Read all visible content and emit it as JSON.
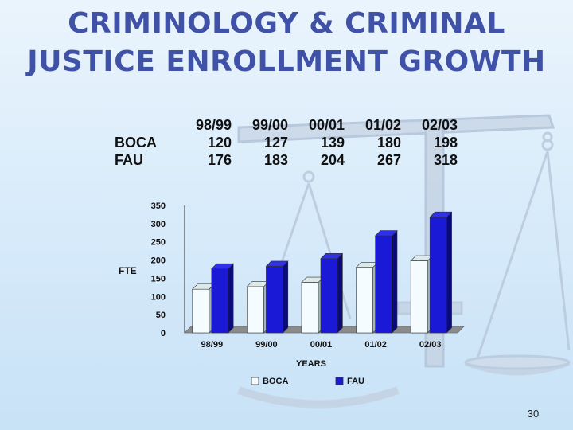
{
  "title_lines": [
    "CRIMINOLOGY & CRIMINAL",
    "JUSTICE ENROLLMENT GROWTH"
  ],
  "page_number": "30",
  "table": {
    "header": [
      "98/99",
      "99/00",
      "00/01",
      "01/02",
      "02/03"
    ],
    "rows": [
      {
        "label": "BOCA",
        "values": [
          "120",
          "127",
          "139",
          "180",
          "198"
        ]
      },
      {
        "label": "FAU",
        "values": [
          "176",
          "183",
          "204",
          "267",
          "318"
        ]
      }
    ]
  },
  "chart_data": {
    "type": "bar",
    "categories": [
      "98/99",
      "99/00",
      "00/01",
      "01/02",
      "02/03"
    ],
    "series": [
      {
        "name": "BOCA",
        "values": [
          120,
          127,
          139,
          180,
          198
        ],
        "color": "#f4fcff"
      },
      {
        "name": "FAU",
        "values": [
          176,
          183,
          204,
          267,
          318
        ],
        "color": "#1a1ad6"
      }
    ],
    "xlabel": "YEARS",
    "ylabel": "FTE",
    "ylim": [
      0,
      350
    ],
    "yticks": [
      "0",
      "50",
      "100",
      "150",
      "200",
      "250",
      "300",
      "350"
    ],
    "grid": false,
    "legend_position": "bottom",
    "style": "3d"
  },
  "colors": {
    "title": "#3f52a8",
    "fau_side": "#0a0a7a",
    "fau_top": "#3030e8",
    "boca_side": "#9fb7b9",
    "boca_top": "#dde9e9",
    "floor": "#8a8a8a"
  }
}
